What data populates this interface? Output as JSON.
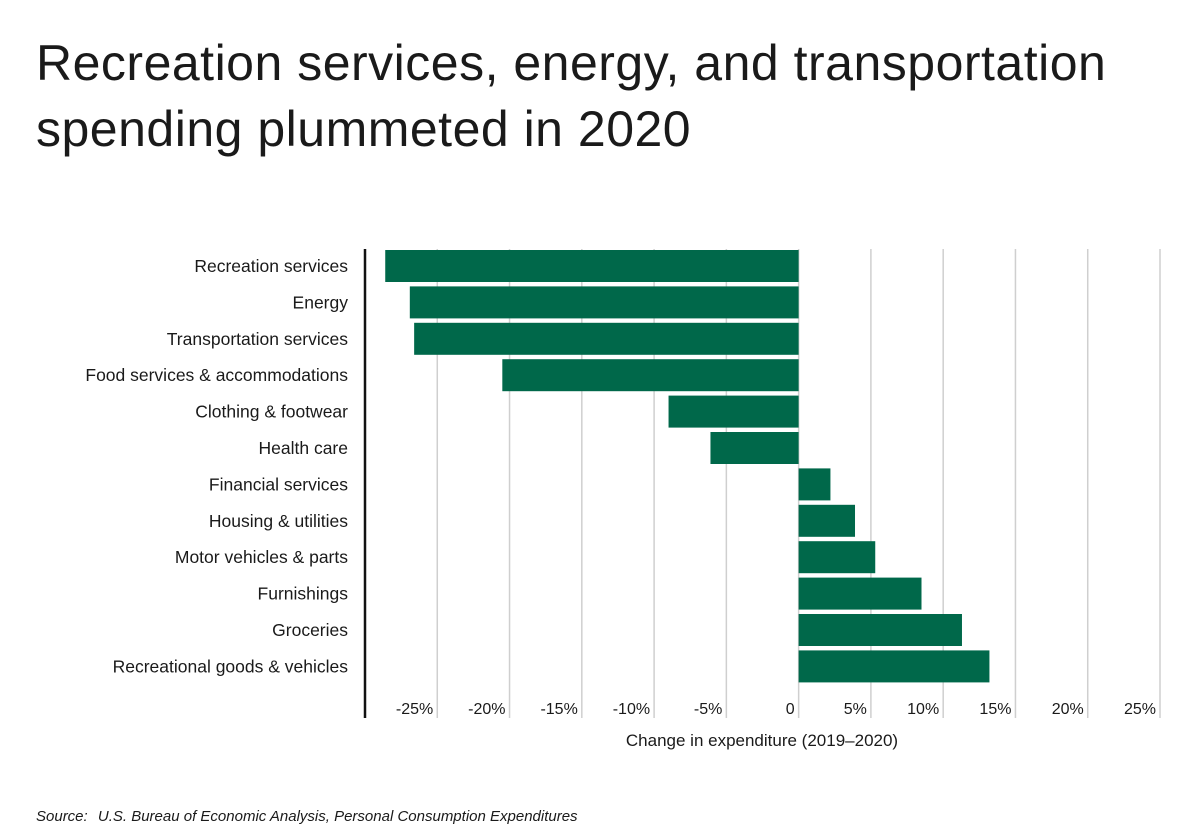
{
  "header": {
    "title": "Recreation services, energy, and transportation spending plummeted in 2020"
  },
  "footer": {
    "source_label": "Source:",
    "source_text": "U.S. Bureau of Economic Analysis, Personal Consumption Expenditures"
  },
  "chart_data": {
    "type": "bar",
    "orientation": "horizontal",
    "title": "Recreation services, energy, and transportation spending plummeted in 2020",
    "xlabel": "Change in expenditure (2019–2020)",
    "ylabel": "",
    "xlim": [
      -30,
      25
    ],
    "x_ticks": [
      -25,
      -20,
      -15,
      -10,
      -5,
      0,
      5,
      10,
      15,
      20,
      25
    ],
    "x_tick_labels": [
      "-25%",
      "-20%",
      "-15%",
      "-10%",
      "-5%",
      "0",
      "5%",
      "10%",
      "15%",
      "20%",
      "25%"
    ],
    "grid": true,
    "bar_color": "#00684a",
    "categories": [
      "Recreation services",
      "Energy",
      "Transportation services",
      "Food services & accommodations",
      "Clothing & footwear",
      "Health care",
      "Financial services",
      "Housing & utilities",
      "Motor vehicles & parts",
      "Furnishings",
      "Groceries",
      "Recreational goods & vehicles"
    ],
    "values": [
      -28.6,
      -26.9,
      -26.6,
      -20.5,
      -9.0,
      -6.1,
      2.2,
      3.9,
      5.3,
      8.5,
      11.3,
      13.2
    ]
  }
}
